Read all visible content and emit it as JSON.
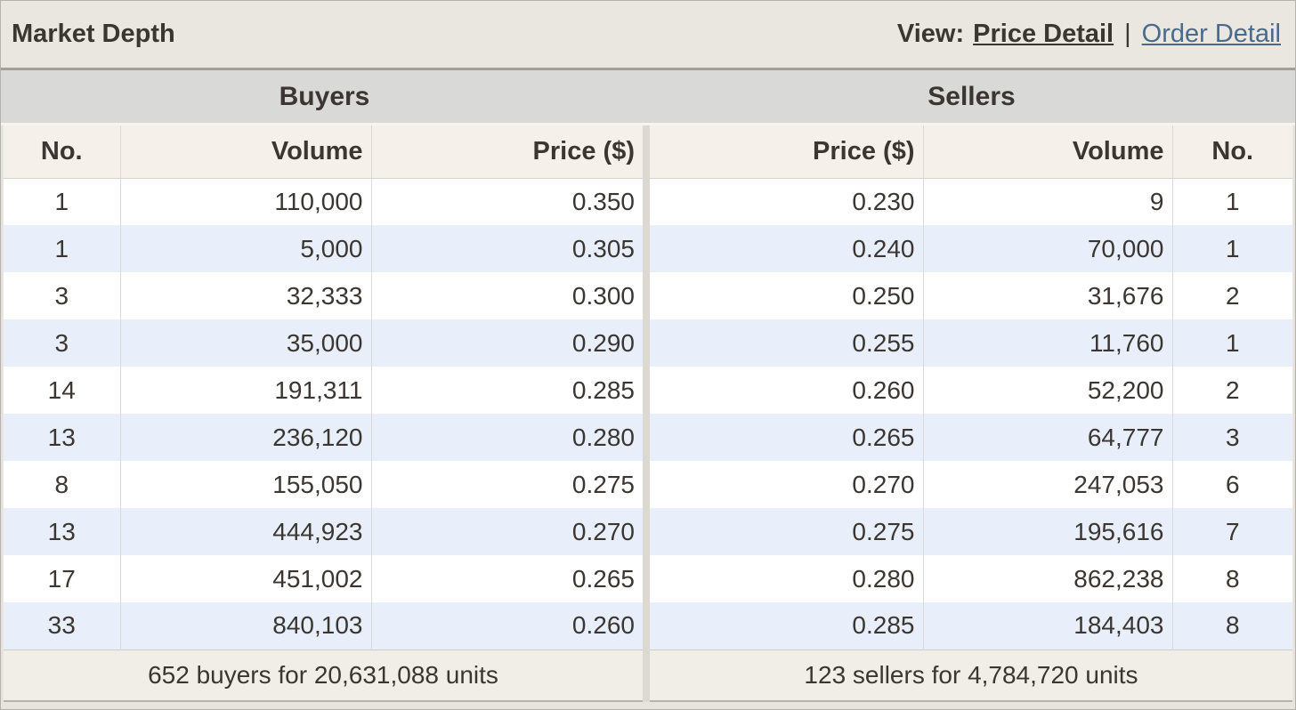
{
  "header": {
    "title": "Market Depth",
    "view_label": "View:",
    "separator": "|",
    "view_options": [
      {
        "label": "Price Detail",
        "active": true
      },
      {
        "label": "Order Detail",
        "active": false
      }
    ]
  },
  "buyers": {
    "section_title": "Buyers",
    "columns": [
      "No.",
      "Volume",
      "Price ($)"
    ],
    "rows": [
      {
        "no": "1",
        "volume": "110,000",
        "price": "0.350"
      },
      {
        "no": "1",
        "volume": "5,000",
        "price": "0.305"
      },
      {
        "no": "3",
        "volume": "32,333",
        "price": "0.300"
      },
      {
        "no": "3",
        "volume": "35,000",
        "price": "0.290"
      },
      {
        "no": "14",
        "volume": "191,311",
        "price": "0.285"
      },
      {
        "no": "13",
        "volume": "236,120",
        "price": "0.280"
      },
      {
        "no": "8",
        "volume": "155,050",
        "price": "0.275"
      },
      {
        "no": "13",
        "volume": "444,923",
        "price": "0.270"
      },
      {
        "no": "17",
        "volume": "451,002",
        "price": "0.265"
      },
      {
        "no": "33",
        "volume": "840,103",
        "price": "0.260"
      }
    ],
    "summary": "652 buyers for 20,631,088 units"
  },
  "sellers": {
    "section_title": "Sellers",
    "columns": [
      "Price ($)",
      "Volume",
      "No."
    ],
    "rows": [
      {
        "price": "0.230",
        "volume": "9",
        "no": "1"
      },
      {
        "price": "0.240",
        "volume": "70,000",
        "no": "1"
      },
      {
        "price": "0.250",
        "volume": "31,676",
        "no": "2"
      },
      {
        "price": "0.255",
        "volume": "11,760",
        "no": "1"
      },
      {
        "price": "0.260",
        "volume": "52,200",
        "no": "2"
      },
      {
        "price": "0.265",
        "volume": "64,777",
        "no": "3"
      },
      {
        "price": "0.270",
        "volume": "247,053",
        "no": "6"
      },
      {
        "price": "0.275",
        "volume": "195,616",
        "no": "7"
      },
      {
        "price": "0.280",
        "volume": "862,238",
        "no": "8"
      },
      {
        "price": "0.285",
        "volume": "184,403",
        "no": "8"
      }
    ],
    "summary": "123 sellers for 4,784,720 units"
  },
  "colors": {
    "link_blue": "#4a6a8c",
    "stripe_blue": "#e8effb",
    "header_beige": "#f5f0ea",
    "band_gray": "#d9d9d7",
    "text_dark": "#3b3631"
  }
}
